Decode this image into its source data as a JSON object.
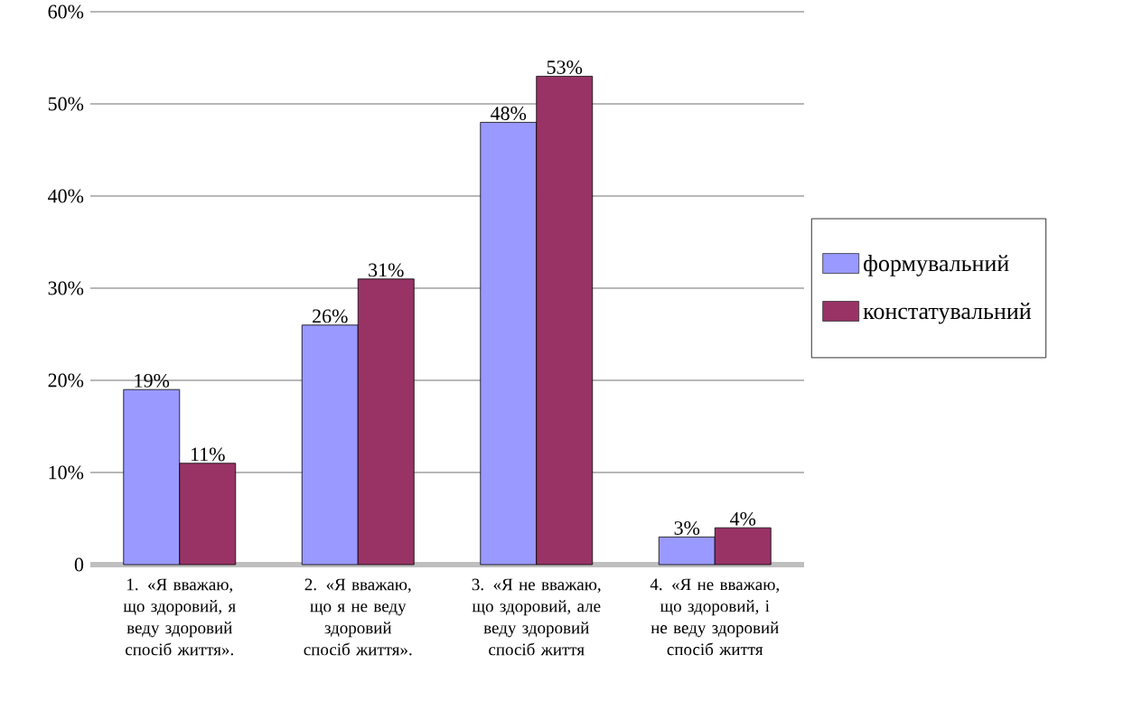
{
  "chart_data": {
    "type": "bar",
    "categories": [
      "1. «Я вважаю, що здоровий, я веду здоровий спосіб життя».",
      "2. «Я вважаю, що я не веду здоровий спосіб життя».",
      "3. «Я не вважаю, що здоровий, але веду здоровий спосіб життя",
      "4. «Я не вважаю, що здоровий, і не веду здоровий спосіб життя"
    ],
    "series": [
      {
        "name": "формувальний",
        "color": "#9999ff",
        "values": [
          19,
          26,
          48,
          3
        ],
        "value_labels": [
          "19%",
          "26%",
          "48%",
          "3%"
        ]
      },
      {
        "name": "констатувальний",
        "color": "#993366",
        "values": [
          11,
          31,
          53,
          4
        ],
        "value_labels": [
          "11%",
          "31%",
          "53%",
          "4%"
        ]
      }
    ],
    "ylim": [
      0,
      60
    ],
    "yticks": [
      {
        "value": 0,
        "label": "0"
      },
      {
        "value": 10,
        "label": "10%"
      },
      {
        "value": 20,
        "label": "20%"
      },
      {
        "value": 30,
        "label": "30%"
      },
      {
        "value": 40,
        "label": "40%"
      },
      {
        "value": 50,
        "label": "50%"
      },
      {
        "value": 60,
        "label": "60%"
      }
    ],
    "grid": "y",
    "legend": "right"
  }
}
